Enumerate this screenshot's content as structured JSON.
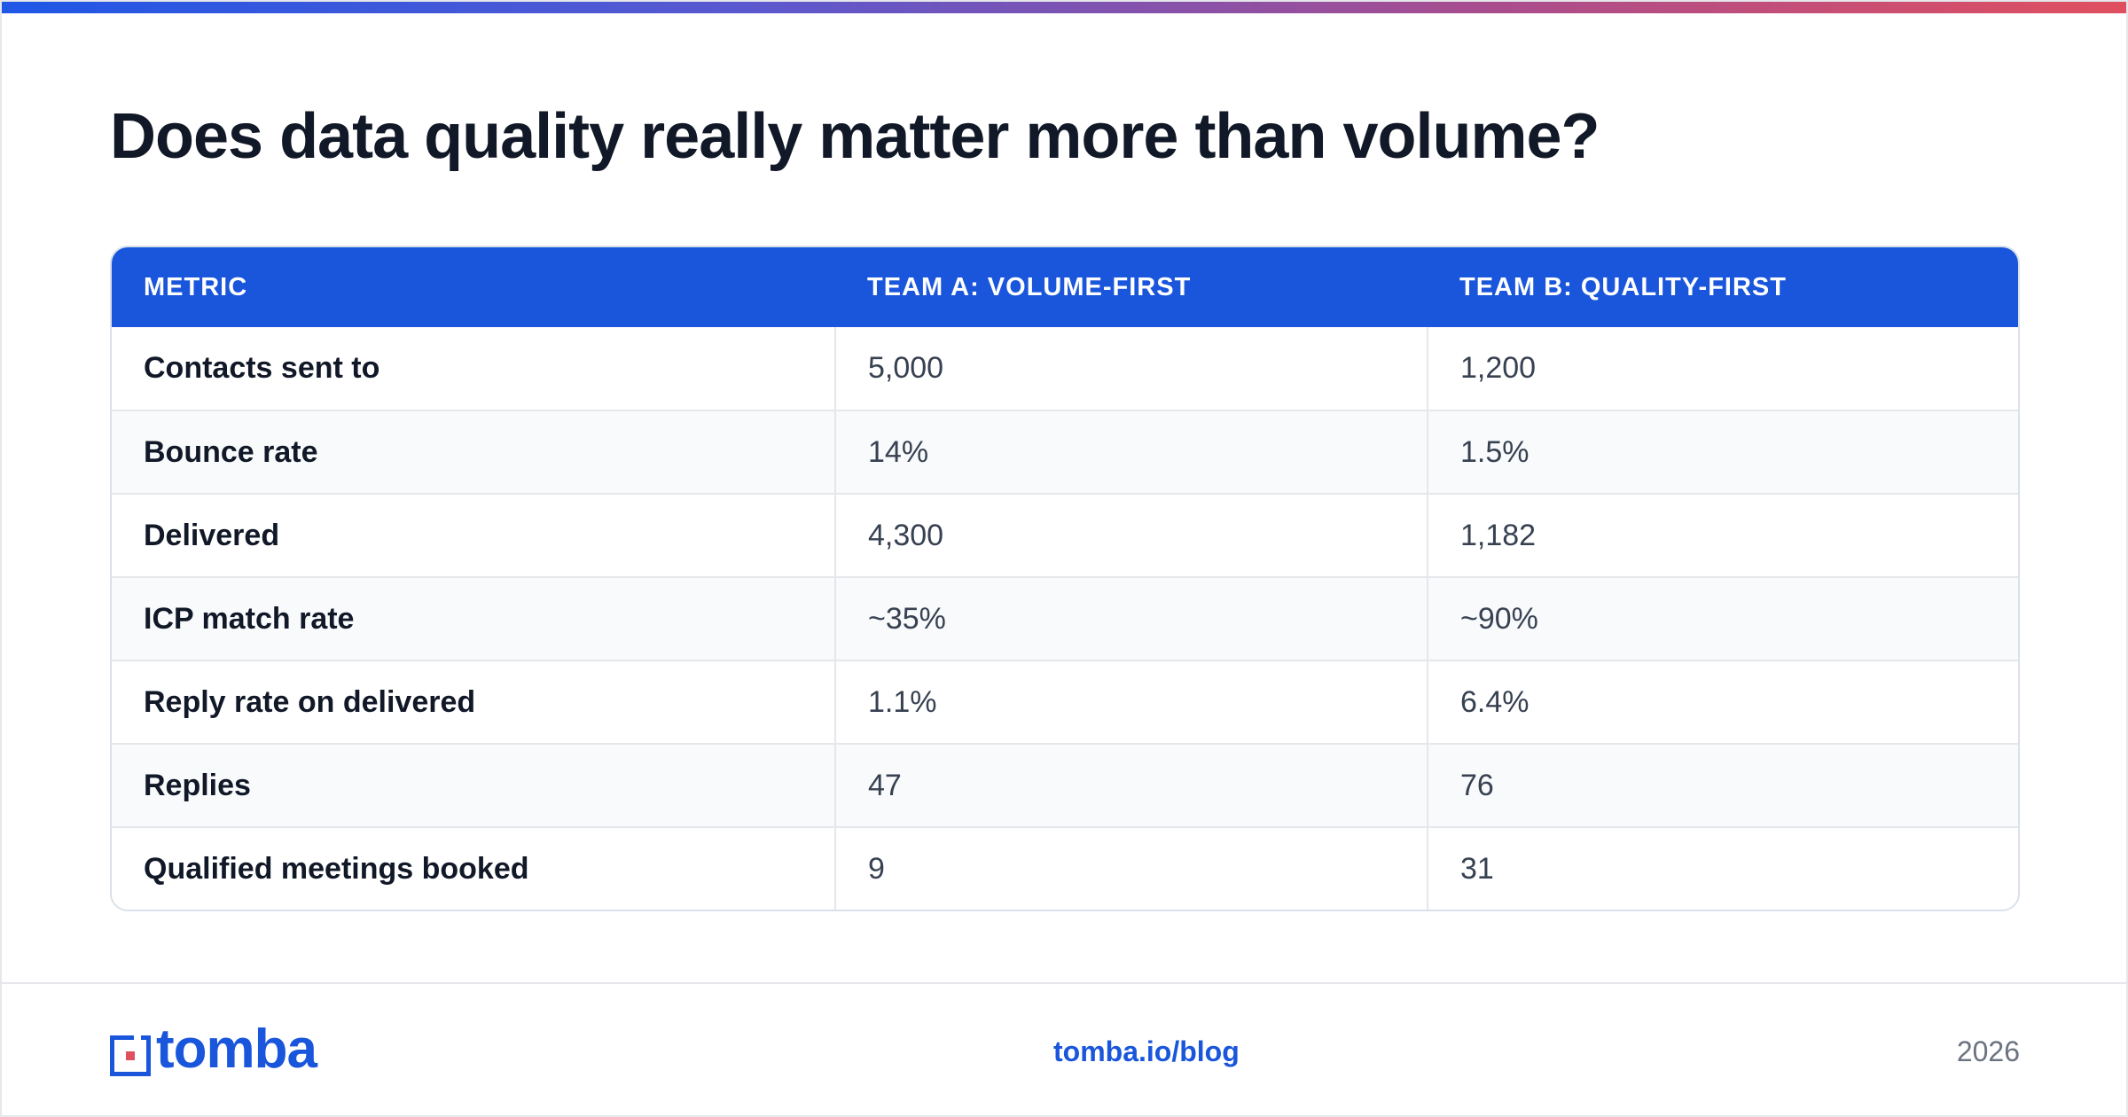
{
  "page": {
    "title": "Does data quality really matter more than volume?",
    "accent_colors": {
      "blue": "#1A56DB",
      "purple": "#6B57C6",
      "coral": "#E04F5F"
    }
  },
  "table": {
    "headers": [
      "METRIC",
      "TEAM A: VOLUME-FIRST",
      "TEAM B: QUALITY-FIRST"
    ],
    "rows": [
      [
        "Contacts sent to",
        "5,000",
        "1,200"
      ],
      [
        "Bounce rate",
        "14%",
        "1.5%"
      ],
      [
        "Delivered",
        "4,300",
        "1,182"
      ],
      [
        "ICP match rate",
        "~35%",
        "~90%"
      ],
      [
        "Reply rate on delivered",
        "1.1%",
        "6.4%"
      ],
      [
        "Replies",
        "47",
        "76"
      ],
      [
        "Qualified meetings booked",
        "9",
        "31"
      ]
    ]
  },
  "footer": {
    "logo_text": "tomba",
    "link_text": "tomba.io/blog",
    "year": "2026",
    "logo_icon": "tomba-logo-icon"
  }
}
